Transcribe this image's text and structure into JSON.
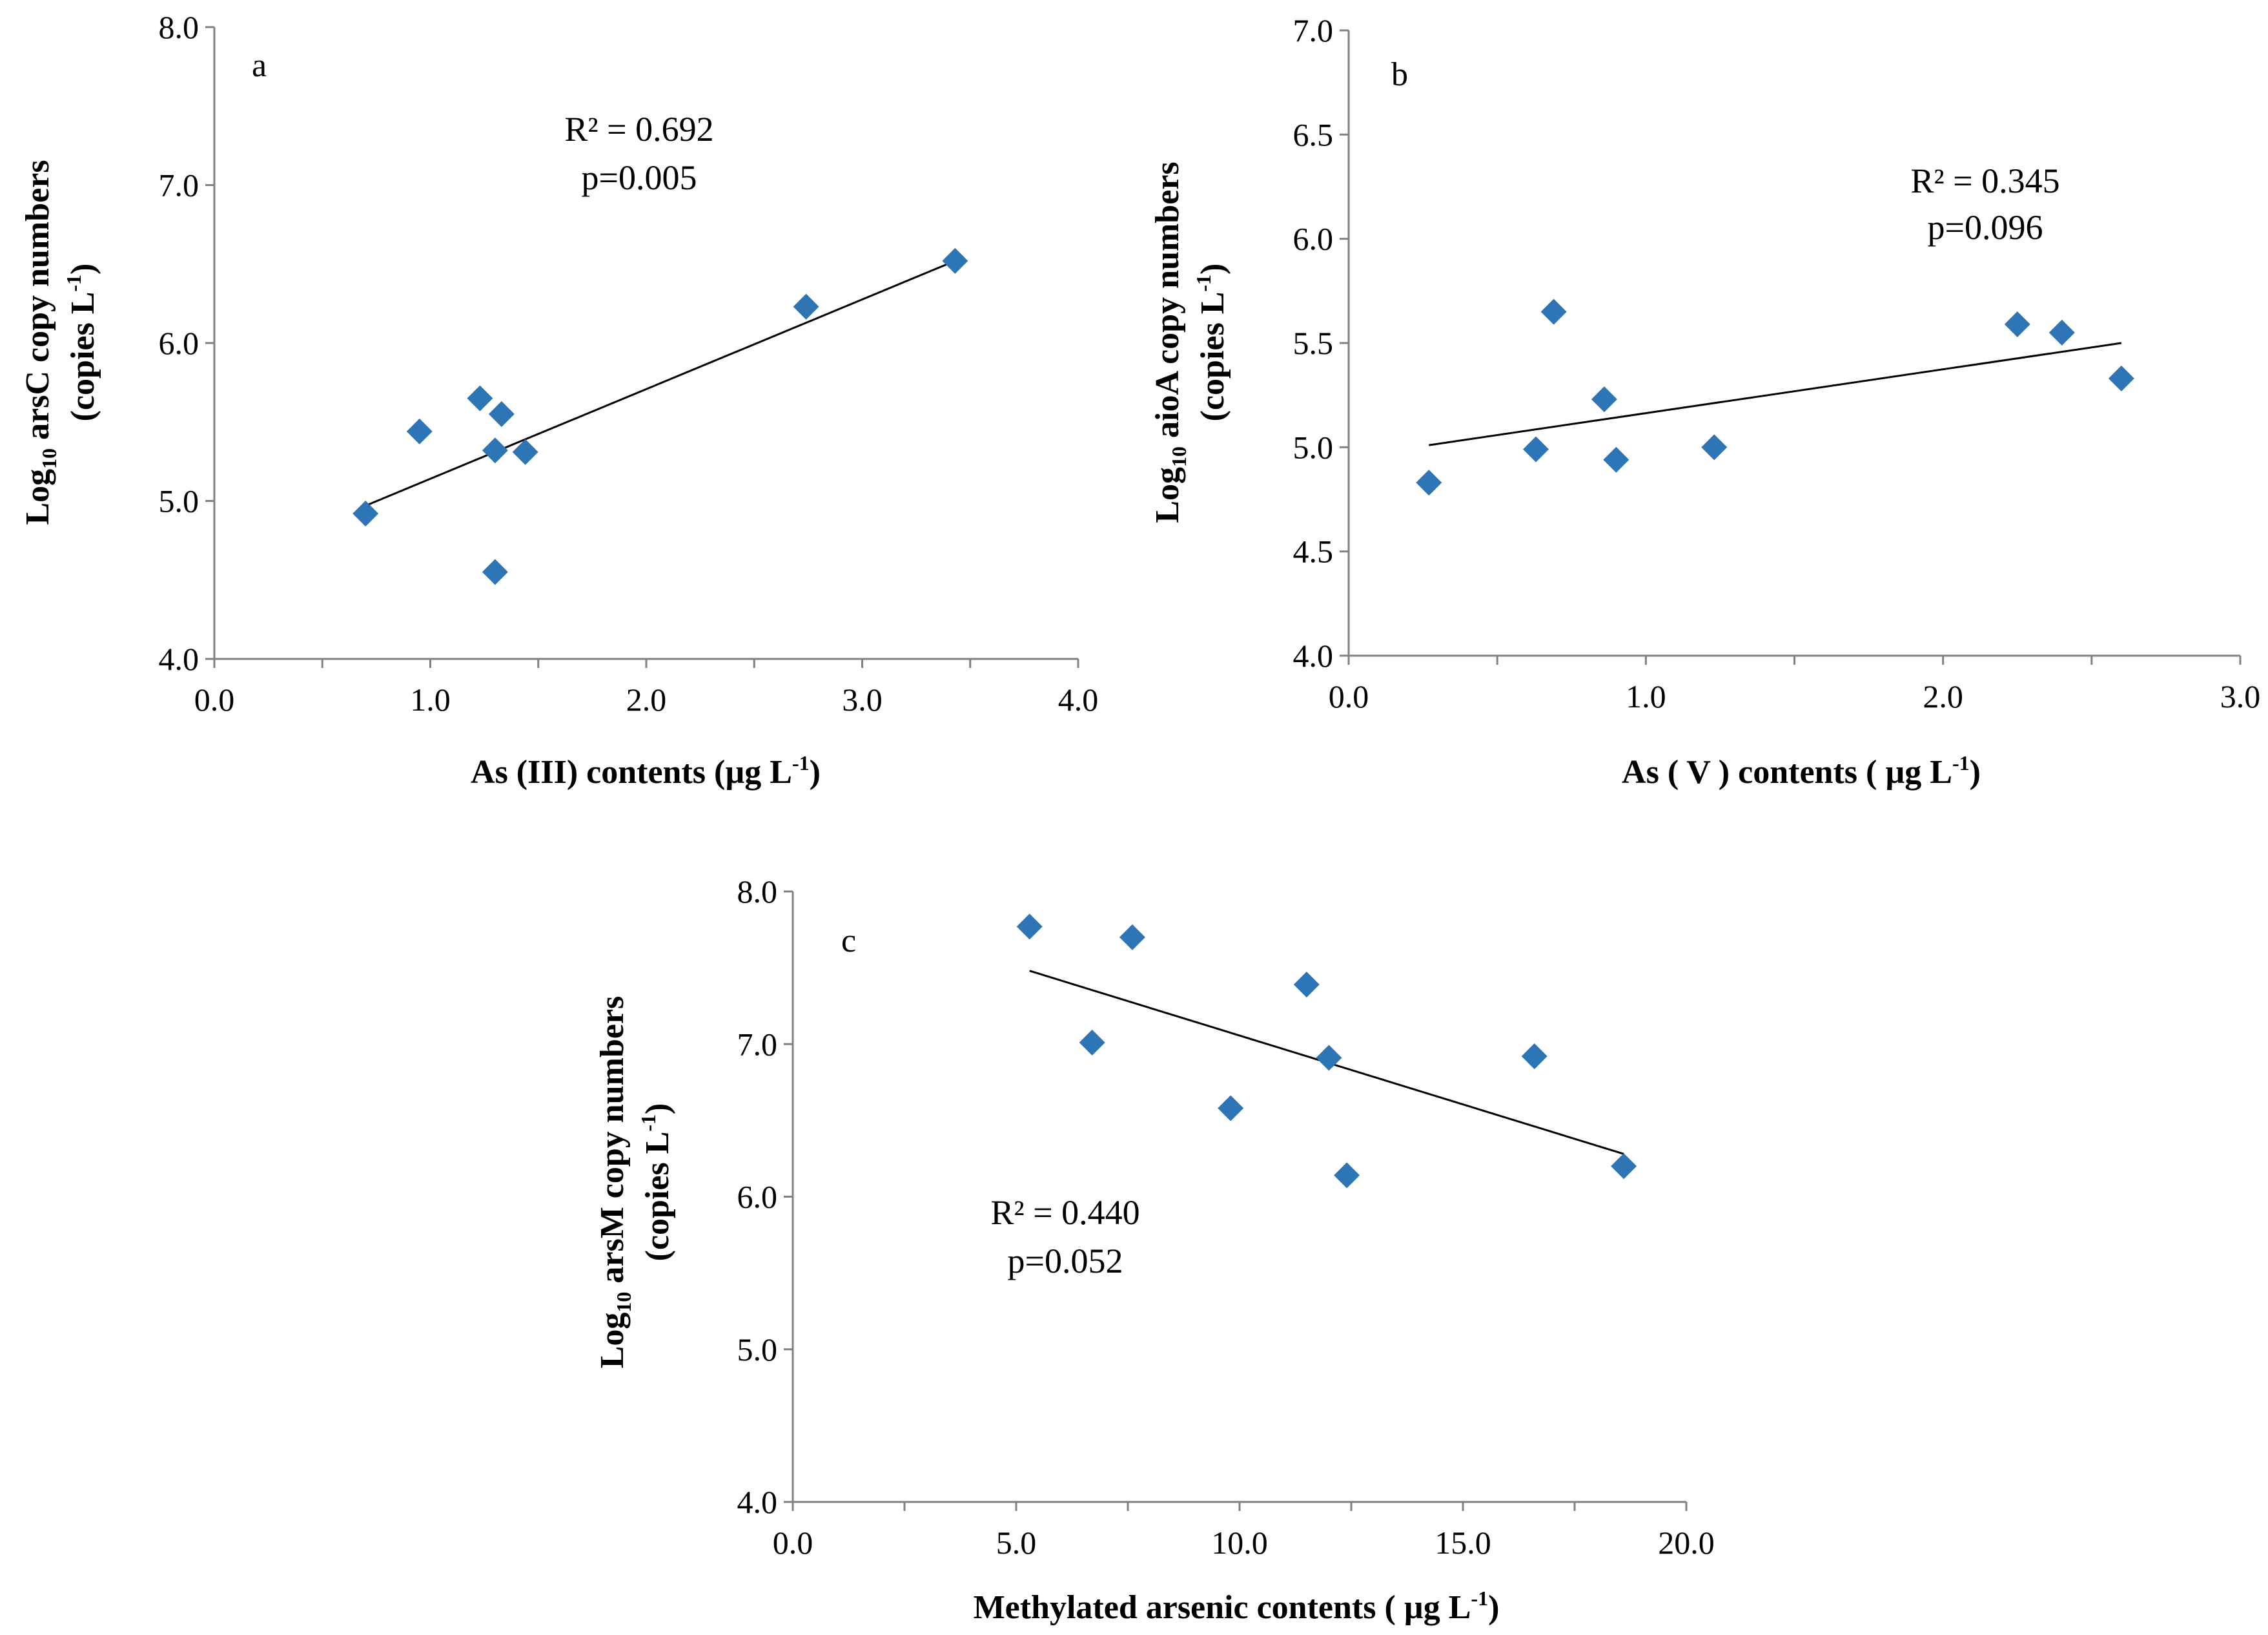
{
  "figure": {
    "colors": {
      "point": "#2E75B6",
      "axis": "#808080",
      "trend": "#000000"
    }
  },
  "chart_data": [
    {
      "id": "a",
      "type": "scatter",
      "panel_label": "a",
      "xlabel": "As (III) contents (µg L",
      "xlabel_sup": "-1",
      "xlabel_end": ")",
      "ylabel_line1_pre": "Log",
      "ylabel_line1_sub": "10",
      "ylabel_line1_post": " arsC copy numbers",
      "ylabel_line2_pre": "(copies L",
      "ylabel_line2_sup": "-1",
      "ylabel_line2_post": ")",
      "xlim": [
        0,
        4
      ],
      "ylim": [
        4,
        8
      ],
      "xticks": [
        "0.0",
        "1.0",
        "2.0",
        "3.0",
        "4.0"
      ],
      "yticks": [
        "4.0",
        "5.0",
        "6.0",
        "7.0",
        "8.0"
      ],
      "x_tick_step": 1.0,
      "x_minor_step": 0.5,
      "y_tick_step": 1.0,
      "points": [
        {
          "x": 0.7,
          "y": 4.92
        },
        {
          "x": 0.95,
          "y": 5.44
        },
        {
          "x": 1.23,
          "y": 5.65
        },
        {
          "x": 1.3,
          "y": 5.32
        },
        {
          "x": 1.3,
          "y": 4.55
        },
        {
          "x": 1.33,
          "y": 5.55
        },
        {
          "x": 1.44,
          "y": 5.31
        },
        {
          "x": 2.74,
          "y": 6.23
        },
        {
          "x": 3.43,
          "y": 6.52
        }
      ],
      "trendline": {
        "x": [
          0.7,
          3.43
        ],
        "y": [
          4.97,
          6.52
        ]
      },
      "r2_text": "R² = 0.692",
      "p_text": "p=0.005"
    },
    {
      "id": "b",
      "type": "scatter",
      "panel_label": "b",
      "xlabel": "As ( V ) contents ( µg L",
      "xlabel_sup": "-1",
      "xlabel_end": ")",
      "ylabel_line1_pre": "Log",
      "ylabel_line1_sub": "10",
      "ylabel_line1_post": " aioA copy numbers",
      "ylabel_line2_pre": "(copies L",
      "ylabel_line2_sup": "-1",
      "ylabel_line2_post": ")",
      "xlim": [
        0,
        3
      ],
      "ylim": [
        4,
        7
      ],
      "xticks": [
        "0.0",
        "1.0",
        "2.0",
        "3.0"
      ],
      "yticks": [
        "4.0",
        "4.5",
        "5.0",
        "5.5",
        "6.0",
        "6.5",
        "7.0"
      ],
      "x_tick_step": 1.0,
      "x_minor_step": 0.5,
      "y_tick_step": 0.5,
      "points": [
        {
          "x": 0.27,
          "y": 4.83
        },
        {
          "x": 0.63,
          "y": 4.99
        },
        {
          "x": 0.69,
          "y": 5.65
        },
        {
          "x": 0.86,
          "y": 5.23
        },
        {
          "x": 0.9,
          "y": 4.94
        },
        {
          "x": 1.23,
          "y": 5.0
        },
        {
          "x": 2.25,
          "y": 5.59
        },
        {
          "x": 2.4,
          "y": 5.55
        },
        {
          "x": 2.6,
          "y": 5.33
        }
      ],
      "trendline": {
        "x": [
          0.27,
          2.6
        ],
        "y": [
          5.01,
          5.5
        ]
      },
      "r2_text": "R² = 0.345",
      "p_text": "p=0.096"
    },
    {
      "id": "c",
      "type": "scatter",
      "panel_label": "c",
      "xlabel": "Methylated arsenic contents ( µg L",
      "xlabel_sup": "-1",
      "xlabel_end": ")",
      "ylabel_line1_pre": "Log",
      "ylabel_line1_sub": "10",
      "ylabel_line1_post": " arsM copy numbers",
      "ylabel_line2_pre": "(copies L",
      "ylabel_line2_sup": "-1",
      "ylabel_line2_post": ")",
      "xlim": [
        0,
        20
      ],
      "ylim": [
        4,
        8
      ],
      "xticks": [
        "0.0",
        "5.0",
        "10.0",
        "15.0",
        "20.0"
      ],
      "yticks": [
        "4.0",
        "5.0",
        "6.0",
        "7.0",
        "8.0"
      ],
      "x_tick_step": 5.0,
      "x_minor_step": 2.5,
      "y_tick_step": 1.0,
      "points": [
        {
          "x": 5.3,
          "y": 7.77
        },
        {
          "x": 6.7,
          "y": 7.01
        },
        {
          "x": 7.6,
          "y": 7.7
        },
        {
          "x": 9.8,
          "y": 6.58
        },
        {
          "x": 11.5,
          "y": 7.39
        },
        {
          "x": 12.0,
          "y": 6.91
        },
        {
          "x": 12.4,
          "y": 6.14
        },
        {
          "x": 16.6,
          "y": 6.92
        },
        {
          "x": 18.6,
          "y": 6.2
        }
      ],
      "trendline": {
        "x": [
          5.3,
          18.6
        ],
        "y": [
          7.48,
          6.28
        ]
      },
      "r2_text": "R² = 0.440",
      "p_text": "p=0.052"
    }
  ]
}
